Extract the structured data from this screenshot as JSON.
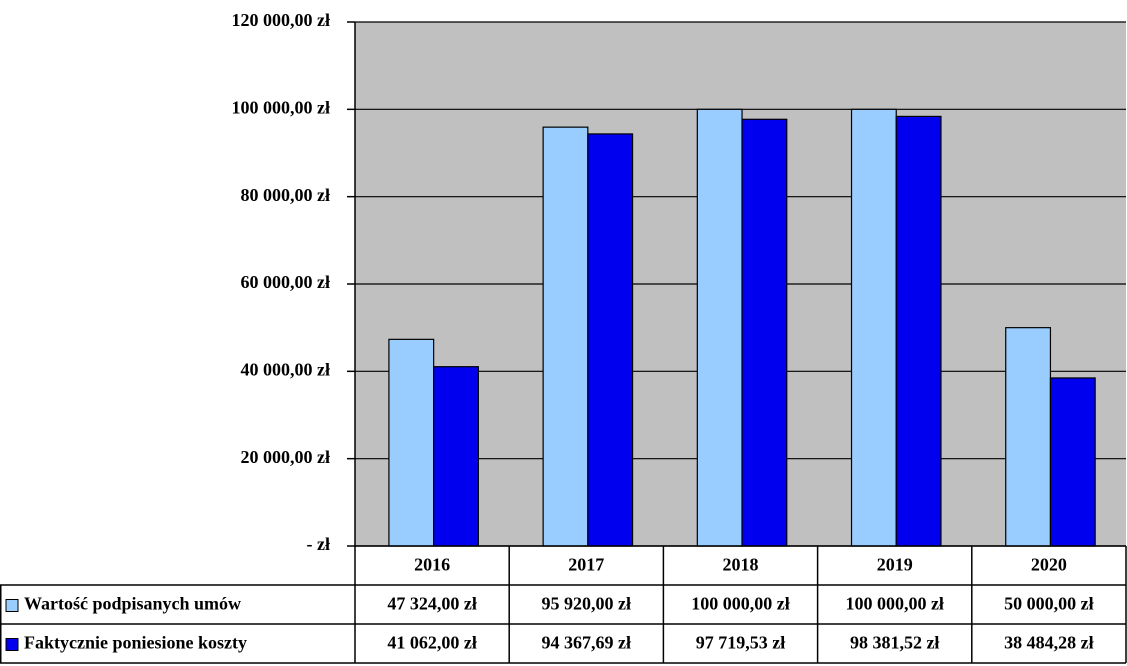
{
  "chart_data": {
    "type": "bar",
    "categories": [
      "2016",
      "2017",
      "2018",
      "2019",
      "2020"
    ],
    "series": [
      {
        "name": "Wartość podpisanych umów",
        "color": "#99ccff",
        "values": [
          47324.0,
          95920.0,
          100000.0,
          100000.0,
          50000.0
        ],
        "value_labels": [
          "47 324,00 zł",
          "95 920,00 zł",
          "100 000,00 zł",
          "100 000,00 zł",
          "50 000,00 zł"
        ]
      },
      {
        "name": "Faktycznie poniesione koszty",
        "color": "#0000ee",
        "values": [
          41062.0,
          94367.69,
          97719.53,
          98381.52,
          38484.28
        ],
        "value_labels": [
          "41 062,00 zł",
          "94 367,69 zł",
          "97 719,53 zł",
          "98 381,52 zł",
          "38 484,28 zł"
        ]
      }
    ],
    "ylim": [
      0,
      120000
    ],
    "yticks": [
      {
        "value": 0,
        "label": "-    zł"
      },
      {
        "value": 20000,
        "label": "20 000,00 zł"
      },
      {
        "value": 40000,
        "label": "40 000,00 zł"
      },
      {
        "value": 60000,
        "label": "60 000,00 zł"
      },
      {
        "value": 80000,
        "label": "80 000,00 zł"
      },
      {
        "value": 100000,
        "label": "100 000,00 zł"
      },
      {
        "value": 120000,
        "label": "120 000,00 zł"
      }
    ],
    "grid": true,
    "plot_background": "#c0c0c0",
    "data_table": true
  }
}
